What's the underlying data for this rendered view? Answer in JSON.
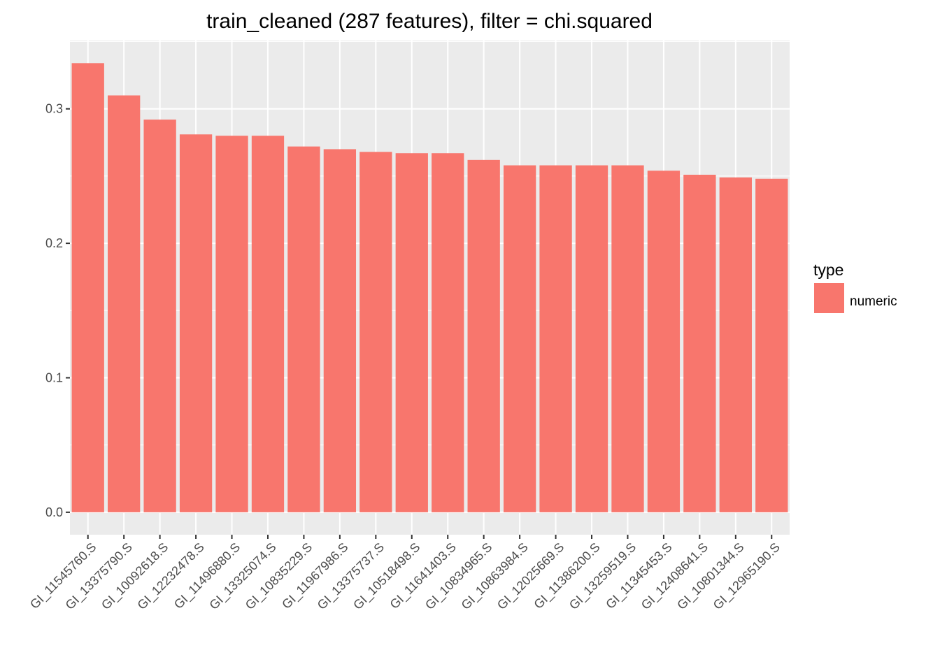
{
  "chart_data": {
    "type": "bar",
    "title": "train_cleaned (287 features), filter = chi.squared",
    "xlabel": "",
    "ylabel": "",
    "categories": [
      "GI_11545760.S",
      "GI_13375790.S",
      "GI_10092618.S",
      "GI_12232478.S",
      "GI_11496880.S",
      "GI_13325074.S",
      "GI_10835229.S",
      "GI_11967986.S",
      "GI_13375737.S",
      "GI_10518498.S",
      "GI_11641403.S",
      "GI_10834965.S",
      "GI_10863984.S",
      "GI_12025669.S",
      "GI_11386200.S",
      "GI_13259519.S",
      "GI_11345453.S",
      "GI_12408641.S",
      "GI_10801344.S",
      "GI_12965190.S"
    ],
    "series": [
      {
        "name": "numeric",
        "color": "#F8766D",
        "values": [
          0.334,
          0.31,
          0.292,
          0.281,
          0.28,
          0.28,
          0.272,
          0.27,
          0.268,
          0.267,
          0.267,
          0.262,
          0.258,
          0.258,
          0.258,
          0.258,
          0.254,
          0.251,
          0.249,
          0.248
        ]
      }
    ],
    "yticks": [
      "0.0",
      "0.1",
      "0.2",
      "0.3"
    ],
    "ytick_values": [
      0.0,
      0.1,
      0.2,
      0.3
    ],
    "ylim": [
      -0.0167,
      0.3508
    ],
    "grid": true,
    "panel_color": "#EBEBEB",
    "legend": {
      "title": "type",
      "placement": "right",
      "entries": [
        {
          "label": "numeric",
          "color": "#F8766D"
        }
      ]
    }
  }
}
